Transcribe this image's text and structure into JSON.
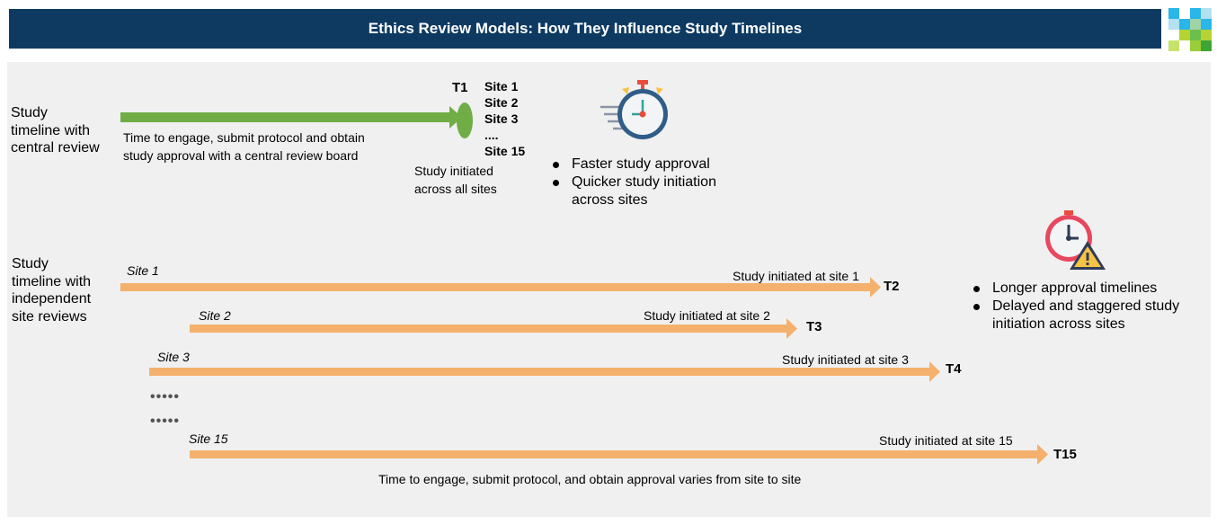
{
  "header": {
    "title": "Ethics Review Models: How They Influence Study Timelines"
  },
  "colors": {
    "title_bg": "#0e3a62",
    "green_arrow": "#70ad47",
    "orange_arrow": "#f4b16e",
    "panel_bg": "#f0f0f0"
  },
  "central": {
    "label_lines": [
      "Study",
      "timeline with",
      "central review"
    ],
    "arrow_text": [
      "Time to engage, submit protocol  and obtain",
      "study approval with a central review board"
    ],
    "milestone": "T1",
    "sites": [
      "Site 1",
      "Site 2",
      "Site 3",
      "....",
      "Site 15"
    ],
    "initiated": [
      "Study initiated",
      "across all sites"
    ],
    "icon": "stopwatch-icon",
    "bullets": [
      {
        "lines": [
          "Faster study approval"
        ]
      },
      {
        "lines": [
          "Quicker study initiation",
          "across sites"
        ]
      }
    ]
  },
  "independent": {
    "label_lines": [
      "Study",
      "timeline with",
      "independent",
      "site reviews"
    ],
    "sites": [
      {
        "site": "Site 1",
        "initiated": "Study initiated at site 1",
        "milestone": "T2"
      },
      {
        "site": "Site 2",
        "initiated": "Study initiated at site 2",
        "milestone": "T3"
      },
      {
        "site": "Site 3",
        "initiated": "Study initiated at site 3",
        "milestone": "T4"
      },
      {
        "site": "Site 15",
        "initiated": "Study initiated at site 15",
        "milestone": "T15"
      }
    ],
    "ellipsis": [
      "•••••",
      "•••••"
    ],
    "footer_text": "Time to engage, submit protocol, and obtain approval varies from site to site",
    "icon": "clock-warning-icon",
    "bullets": [
      {
        "lines": [
          "Longer approval timelines"
        ]
      },
      {
        "lines": [
          "Delayed and staggered study",
          "initiation across sites"
        ]
      }
    ]
  }
}
